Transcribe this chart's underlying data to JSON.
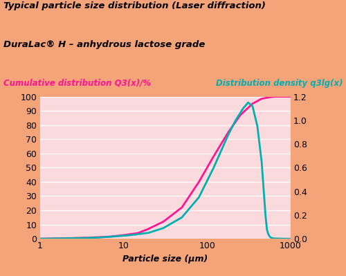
{
  "title1": "Typical particle size distribution (Laser diffraction)",
  "title2": "DuraLac® H – anhydrous lactose grade",
  "label_cumulative": "Cumulative distribution Q3(x)/%",
  "label_density": "Distribution density q3lg(x)",
  "xlabel": "Particle size (µm)",
  "background_color": "#F5A47A",
  "plot_bg_color": "#FADADC",
  "grid_color": "#FFFFFF",
  "cumulative_color": "#FF1493",
  "density_color": "#00B0B0",
  "ylim_left": [
    0,
    100
  ],
  "ylim_right": [
    0,
    1.2
  ],
  "xlim": [
    1,
    1000
  ],
  "yticks_left": [
    0,
    10,
    20,
    30,
    40,
    50,
    60,
    70,
    80,
    90,
    100
  ],
  "yticks_right": [
    0,
    0.2,
    0.4,
    0.6,
    0.8,
    1.0,
    1.2
  ],
  "cumulative_x": [
    1,
    2,
    4,
    7,
    10,
    15,
    20,
    30,
    50,
    80,
    120,
    180,
    250,
    350,
    450,
    550,
    650,
    800,
    1000
  ],
  "cumulative_y": [
    0,
    0.3,
    0.8,
    1.5,
    2.5,
    4,
    7,
    12,
    22,
    40,
    58,
    75,
    87,
    95,
    98.5,
    99.5,
    100,
    100,
    100
  ],
  "density_x": [
    1,
    3,
    5,
    8,
    12,
    20,
    30,
    50,
    80,
    120,
    180,
    220,
    270,
    310,
    350,
    400,
    450,
    500,
    520,
    540,
    560,
    580,
    600,
    650,
    700,
    800,
    1000
  ],
  "density_y": [
    0,
    0.005,
    0.01,
    0.02,
    0.03,
    0.05,
    0.09,
    0.18,
    0.35,
    0.6,
    0.88,
    1.0,
    1.1,
    1.15,
    1.12,
    0.95,
    0.65,
    0.2,
    0.08,
    0.04,
    0.02,
    0.01,
    0.005,
    0.002,
    0.001,
    0,
    0
  ],
  "title1_fontsize": 9.5,
  "title2_fontsize": 9.5,
  "label_fontsize": 8.5,
  "tick_fontsize": 9,
  "xlabel_fontsize": 9
}
